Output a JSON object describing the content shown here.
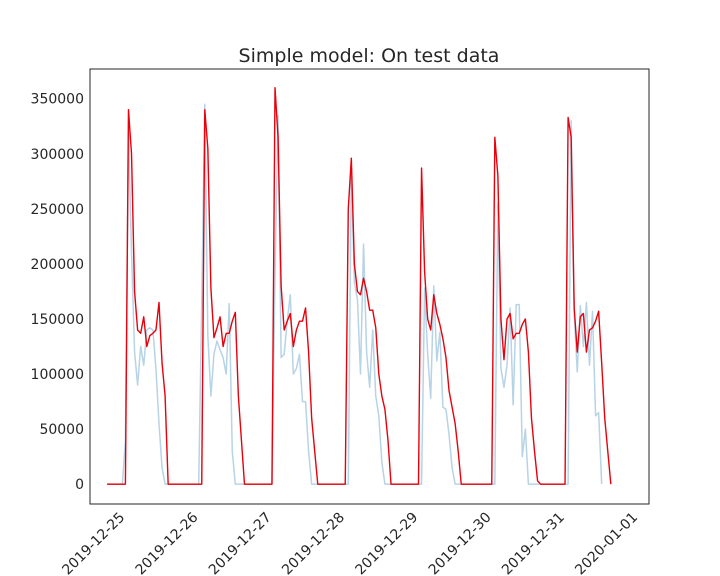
{
  "chart_data": {
    "type": "line",
    "title": "Simple model: On test data",
    "xlabel": "",
    "ylabel": "",
    "x_start": "2019-12-24 18:00",
    "x_step_hours": 1,
    "xlim": [
      "2019-12-24 12:24",
      "2020-01-01 03:30"
    ],
    "ylim": [
      -18000,
      377000
    ],
    "yticks": [
      0,
      50000,
      100000,
      150000,
      200000,
      250000,
      300000,
      350000
    ],
    "ytick_labels": [
      "0",
      "50000",
      "100000",
      "150000",
      "200000",
      "250000",
      "300000",
      "350000"
    ],
    "xticks": [
      "2019-12-25",
      "2019-12-26",
      "2019-12-27",
      "2019-12-28",
      "2019-12-29",
      "2019-12-30",
      "2019-12-31",
      "2020-01-01"
    ],
    "grid": false,
    "legend": "none",
    "series": [
      {
        "color": "#b7d3e6",
        "values": [
          0,
          0,
          0,
          0,
          0,
          0,
          40000,
          320000,
          210000,
          120000,
          90000,
          125000,
          108000,
          140000,
          142000,
          140000,
          105000,
          55000,
          15000,
          0,
          0,
          0,
          0,
          0,
          0,
          0,
          0,
          0,
          0,
          0,
          0,
          165000,
          345000,
          135000,
          80000,
          118000,
          130000,
          122000,
          115000,
          100000,
          164000,
          30000,
          0,
          0,
          0,
          0,
          0,
          0,
          0,
          0,
          0,
          0,
          0,
          0,
          0,
          190000,
          335000,
          115000,
          118000,
          148000,
          172000,
          100000,
          105000,
          118000,
          75000,
          75000,
          30000,
          0,
          0,
          0,
          0,
          0,
          0,
          0,
          0,
          0,
          0,
          0,
          0,
          0,
          285000,
          183000,
          168000,
          100000,
          218000,
          120000,
          88000,
          140000,
          80000,
          62000,
          20000,
          0,
          0,
          0,
          0,
          0,
          0,
          0,
          0,
          0,
          0,
          0,
          0,
          0,
          178000,
          118000,
          78000,
          180000,
          112000,
          138000,
          70000,
          68000,
          45000,
          15000,
          0,
          0,
          0,
          0,
          0,
          0,
          0,
          0,
          0,
          0,
          0,
          0,
          0,
          0,
          255000,
          105000,
          88000,
          108000,
          160000,
          72000,
          163000,
          163000,
          25000,
          50000,
          0,
          0,
          0,
          0,
          0,
          0,
          0,
          0,
          0,
          0,
          0,
          0,
          0,
          0,
          330000,
          155000,
          102000,
          162000,
          125000,
          165000,
          108000,
          157000,
          62000,
          65000,
          0
        ]
      },
      {
        "color": "#e8000b",
        "values": [
          0,
          0,
          0,
          0,
          0,
          0,
          0,
          340000,
          300000,
          175000,
          140000,
          137000,
          152000,
          125000,
          135000,
          137000,
          140000,
          165000,
          110000,
          80000,
          0,
          0,
          0,
          0,
          0,
          0,
          0,
          0,
          0,
          0,
          0,
          0,
          340000,
          305000,
          178000,
          133000,
          142000,
          152000,
          125000,
          137000,
          137000,
          148000,
          156000,
          80000,
          40000,
          0,
          0,
          0,
          0,
          0,
          0,
          0,
          0,
          0,
          0,
          360000,
          315000,
          180000,
          140000,
          148000,
          155000,
          125000,
          140000,
          148000,
          148000,
          160000,
          120000,
          60000,
          30000,
          0,
          0,
          0,
          0,
          0,
          0,
          0,
          0,
          0,
          0,
          250000,
          296000,
          200000,
          175000,
          172000,
          187000,
          175000,
          158000,
          158000,
          142000,
          100000,
          80000,
          68000,
          40000,
          0,
          0,
          0,
          0,
          0,
          0,
          0,
          0,
          0,
          0,
          287000,
          193000,
          150000,
          140000,
          172000,
          155000,
          145000,
          132000,
          115000,
          85000,
          70000,
          55000,
          30000,
          0,
          0,
          0,
          0,
          0,
          0,
          0,
          0,
          0,
          0,
          0,
          315000,
          280000,
          150000,
          113000,
          150000,
          155000,
          132000,
          137000,
          137000,
          145000,
          150000,
          120000,
          60000,
          30000,
          3000,
          0,
          0,
          0,
          0,
          0,
          0,
          0,
          0,
          0,
          333000,
          315000,
          160000,
          120000,
          152000,
          155000,
          120000,
          140000,
          142000,
          148000,
          157000,
          110000,
          60000,
          30000,
          0
        ]
      }
    ]
  }
}
